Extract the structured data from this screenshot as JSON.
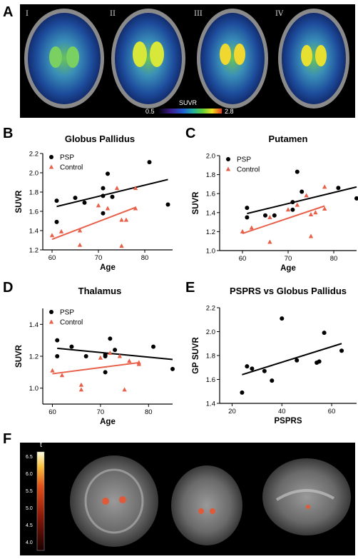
{
  "panel_letters": {
    "a": "A",
    "b": "B",
    "c": "C",
    "d": "D",
    "e": "E",
    "f": "F"
  },
  "panel_a": {
    "slice_labels": [
      "I",
      "II",
      "III",
      "IV"
    ],
    "colorbar_label": "SUVR",
    "colorbar_min": "0.5",
    "colorbar_max": "2.8"
  },
  "panel_f": {
    "colorbar_label": "t",
    "colorbar_ticks": [
      "6.5",
      "6.0",
      "5.5",
      "5.0",
      "4.5",
      "4.0"
    ]
  },
  "chart_data": [
    {
      "id": "B",
      "type": "scatter",
      "title": "Globus Pallidus",
      "xlabel": "Age",
      "ylabel": "SUVR",
      "xlim": [
        58,
        86
      ],
      "ylim": [
        1.2,
        2.2
      ],
      "xticks": [
        "60",
        "70",
        "80"
      ],
      "yticks": [
        "1.2",
        "1.4",
        "1.6",
        "1.8",
        "2.0",
        "2.2"
      ],
      "legend_position": "top-left",
      "series": [
        {
          "name": "PSP",
          "color": "#000000",
          "marker": "circle",
          "points": [
            [
              61,
              1.71
            ],
            [
              61,
              1.49
            ],
            [
              65,
              1.74
            ],
            [
              67,
              1.69
            ],
            [
              71,
              1.84
            ],
            [
              71,
              1.76
            ],
            [
              71,
              1.58
            ],
            [
              72,
              1.99
            ],
            [
              73,
              1.75
            ],
            [
              81,
              2.11
            ],
            [
              85,
              1.67
            ]
          ],
          "fit": [
            [
              61,
              1.65
            ],
            [
              85,
              1.93
            ]
          ]
        },
        {
          "name": "Control",
          "color": "#e8604a",
          "marker": "triangle",
          "points": [
            [
              60,
              1.35
            ],
            [
              62,
              1.39
            ],
            [
              66,
              1.4
            ],
            [
              66,
              1.25
            ],
            [
              70,
              1.66
            ],
            [
              72,
              1.63
            ],
            [
              74,
              1.84
            ],
            [
              75,
              1.51
            ],
            [
              75,
              1.24
            ],
            [
              76,
              1.51
            ],
            [
              78,
              1.84
            ],
            [
              78,
              1.63
            ]
          ],
          "fit": [
            [
              60,
              1.31
            ],
            [
              78,
              1.64
            ]
          ]
        }
      ]
    },
    {
      "id": "C",
      "type": "scatter",
      "title": "Putamen",
      "xlabel": "Age",
      "ylabel": "SUVR",
      "xlim": [
        55,
        85
      ],
      "ylim": [
        1.0,
        2.0
      ],
      "xticks": [
        "60",
        "70",
        "80"
      ],
      "yticks": [
        "1.0",
        "1.2",
        "1.4",
        "1.6",
        "1.8",
        "2.0"
      ],
      "legend_position": "top-left",
      "series": [
        {
          "name": "PSP",
          "color": "#000000",
          "marker": "circle",
          "points": [
            [
              61,
              1.45
            ],
            [
              61,
              1.35
            ],
            [
              65,
              1.37
            ],
            [
              67,
              1.37
            ],
            [
              71,
              1.43
            ],
            [
              71,
              1.51
            ],
            [
              72,
              1.83
            ],
            [
              73,
              1.62
            ],
            [
              81,
              1.66
            ],
            [
              85,
              1.55
            ]
          ],
          "fit": [
            [
              61,
              1.39
            ],
            [
              85,
              1.67
            ]
          ]
        },
        {
          "name": "Control",
          "color": "#e8604a",
          "marker": "triangle",
          "points": [
            [
              60,
              1.2
            ],
            [
              62,
              1.24
            ],
            [
              66,
              1.35
            ],
            [
              66,
              1.09
            ],
            [
              70,
              1.43
            ],
            [
              72,
              1.48
            ],
            [
              74,
              1.58
            ],
            [
              75,
              1.38
            ],
            [
              75,
              1.15
            ],
            [
              76,
              1.4
            ],
            [
              78,
              1.67
            ],
            [
              78,
              1.44
            ]
          ],
          "fit": [
            [
              60,
              1.18
            ],
            [
              78,
              1.47
            ]
          ]
        }
      ]
    },
    {
      "id": "D",
      "type": "scatter",
      "title": "Thalamus",
      "xlabel": "Age",
      "ylabel": "SUVR",
      "xlim": [
        58,
        85
      ],
      "ylim": [
        0.9,
        1.5
      ],
      "xticks": [
        "60",
        "70",
        "80"
      ],
      "yticks": [
        "1.0",
        "1.2",
        "1.4"
      ],
      "legend_position": "top-left",
      "series": [
        {
          "name": "PSP",
          "color": "#000000",
          "marker": "circle",
          "points": [
            [
              61,
              1.3
            ],
            [
              61,
              1.2
            ],
            [
              64,
              1.26
            ],
            [
              67,
              1.2
            ],
            [
              71,
              1.21
            ],
            [
              71,
              1.2
            ],
            [
              71,
              1.1
            ],
            [
              72,
              1.31
            ],
            [
              73,
              1.24
            ],
            [
              81,
              1.26
            ],
            [
              85,
              1.12
            ]
          ],
          "fit": [
            [
              61,
              1.25
            ],
            [
              85,
              1.18
            ]
          ]
        },
        {
          "name": "Control",
          "color": "#e8604a",
          "marker": "triangle",
          "points": [
            [
              60,
              1.11
            ],
            [
              62,
              1.08
            ],
            [
              66,
              1.02
            ],
            [
              66,
              0.99
            ],
            [
              70,
              1.19
            ],
            [
              72,
              1.22
            ],
            [
              74,
              1.2
            ],
            [
              75,
              0.99
            ],
            [
              76,
              1.17
            ],
            [
              78,
              1.16
            ],
            [
              78,
              1.15
            ]
          ],
          "fit": [
            [
              60,
              1.09
            ],
            [
              78,
              1.16
            ]
          ]
        }
      ]
    },
    {
      "id": "E",
      "type": "scatter",
      "title": "PSPRS vs Globus Pallidus",
      "xlabel": "PSPRS",
      "ylabel": "GP SUVR",
      "xlim": [
        15,
        70
      ],
      "ylim": [
        1.4,
        2.2
      ],
      "xticks": [
        "20",
        "40",
        "60"
      ],
      "yticks": [
        "1.4",
        "1.6",
        "1.8",
        "2.0",
        "2.2"
      ],
      "series": [
        {
          "name": "",
          "color": "#000000",
          "marker": "circle",
          "points": [
            [
              24,
              1.49
            ],
            [
              26,
              1.71
            ],
            [
              28,
              1.69
            ],
            [
              33,
              1.67
            ],
            [
              36,
              1.59
            ],
            [
              40,
              2.11
            ],
            [
              46,
              1.76
            ],
            [
              54,
              1.74
            ],
            [
              55,
              1.75
            ],
            [
              57,
              1.99
            ],
            [
              64,
              1.84
            ]
          ],
          "fit": [
            [
              24,
              1.64
            ],
            [
              64,
              1.9
            ]
          ]
        }
      ]
    }
  ]
}
